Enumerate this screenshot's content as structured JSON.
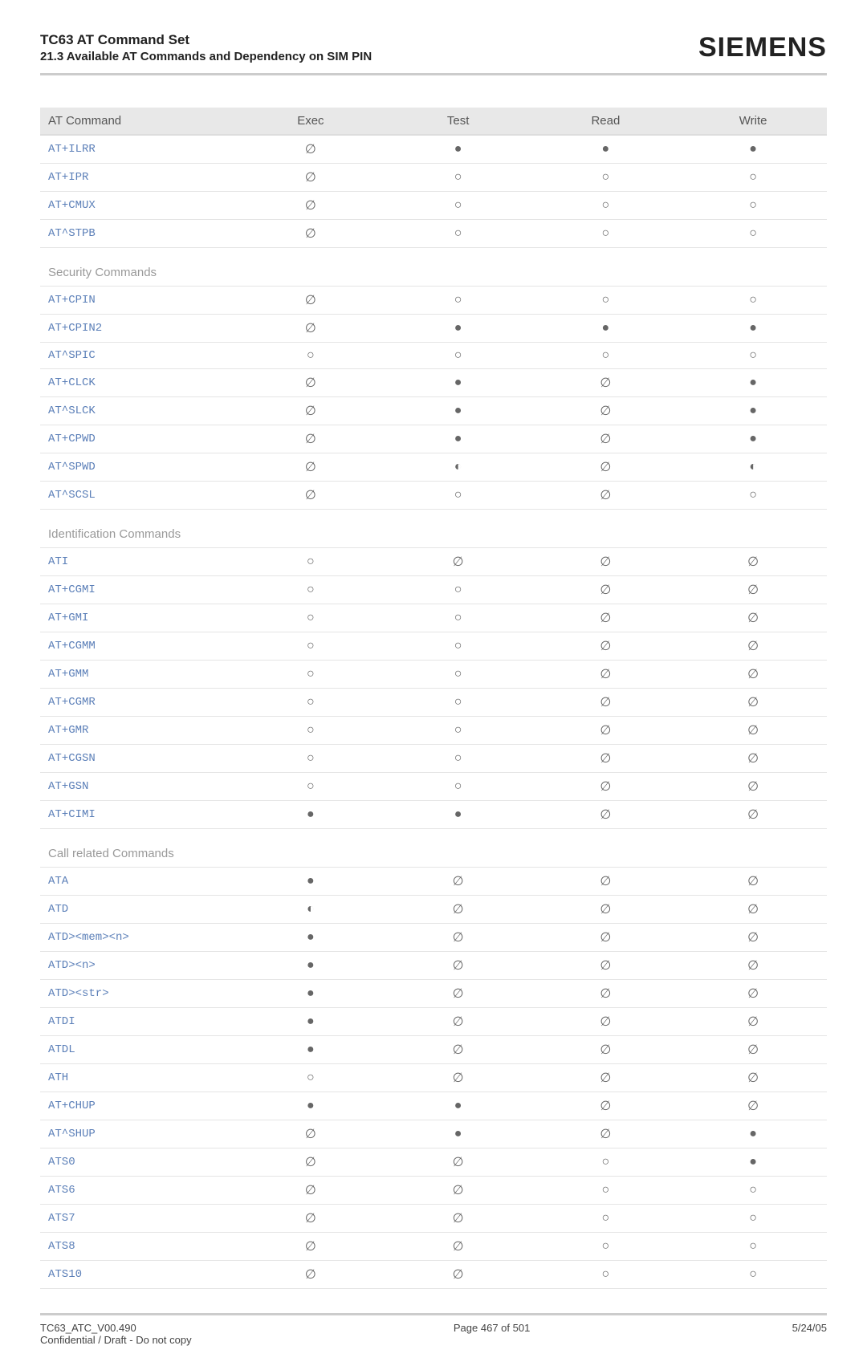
{
  "header": {
    "title": "TC63 AT Command Set",
    "subtitle": "21.3 Available AT Commands and Dependency on SIM PIN",
    "logo": "SIEMENS"
  },
  "columns": [
    "AT Command",
    "Exec",
    "Test",
    "Read",
    "Write"
  ],
  "symbols": {
    "none": "∅",
    "filled": "●",
    "hollow": "○",
    "half": "◐"
  },
  "sections": [
    {
      "title": null,
      "rows": [
        {
          "cmd": "AT+ILRR",
          "exec": "none",
          "test": "filled",
          "read": "filled",
          "write": "filled"
        },
        {
          "cmd": "AT+IPR",
          "exec": "none",
          "test": "hollow",
          "read": "hollow",
          "write": "hollow"
        },
        {
          "cmd": "AT+CMUX",
          "exec": "none",
          "test": "hollow",
          "read": "hollow",
          "write": "hollow"
        },
        {
          "cmd": "AT^STPB",
          "exec": "none",
          "test": "hollow",
          "read": "hollow",
          "write": "hollow"
        }
      ]
    },
    {
      "title": "Security Commands",
      "rows": [
        {
          "cmd": "AT+CPIN",
          "exec": "none",
          "test": "hollow",
          "read": "hollow",
          "write": "hollow"
        },
        {
          "cmd": "AT+CPIN2",
          "exec": "none",
          "test": "filled",
          "read": "filled",
          "write": "filled"
        },
        {
          "cmd": "AT^SPIC",
          "exec": "hollow",
          "test": "hollow",
          "read": "hollow",
          "write": "hollow"
        },
        {
          "cmd": "AT+CLCK",
          "exec": "none",
          "test": "filled",
          "read": "none",
          "write": "filled"
        },
        {
          "cmd": "AT^SLCK",
          "exec": "none",
          "test": "filled",
          "read": "none",
          "write": "filled"
        },
        {
          "cmd": "AT+CPWD",
          "exec": "none",
          "test": "filled",
          "read": "none",
          "write": "filled"
        },
        {
          "cmd": "AT^SPWD",
          "exec": "none",
          "test": "half",
          "read": "none",
          "write": "half"
        },
        {
          "cmd": "AT^SCSL",
          "exec": "none",
          "test": "hollow",
          "read": "none",
          "write": "hollow"
        }
      ]
    },
    {
      "title": "Identification Commands",
      "rows": [
        {
          "cmd": "ATI",
          "exec": "hollow",
          "test": "none",
          "read": "none",
          "write": "none"
        },
        {
          "cmd": "AT+CGMI",
          "exec": "hollow",
          "test": "hollow",
          "read": "none",
          "write": "none"
        },
        {
          "cmd": "AT+GMI",
          "exec": "hollow",
          "test": "hollow",
          "read": "none",
          "write": "none"
        },
        {
          "cmd": "AT+CGMM",
          "exec": "hollow",
          "test": "hollow",
          "read": "none",
          "write": "none"
        },
        {
          "cmd": "AT+GMM",
          "exec": "hollow",
          "test": "hollow",
          "read": "none",
          "write": "none"
        },
        {
          "cmd": "AT+CGMR",
          "exec": "hollow",
          "test": "hollow",
          "read": "none",
          "write": "none"
        },
        {
          "cmd": "AT+GMR",
          "exec": "hollow",
          "test": "hollow",
          "read": "none",
          "write": "none"
        },
        {
          "cmd": "AT+CGSN",
          "exec": "hollow",
          "test": "hollow",
          "read": "none",
          "write": "none"
        },
        {
          "cmd": "AT+GSN",
          "exec": "hollow",
          "test": "hollow",
          "read": "none",
          "write": "none"
        },
        {
          "cmd": "AT+CIMI",
          "exec": "filled",
          "test": "filled",
          "read": "none",
          "write": "none"
        }
      ]
    },
    {
      "title": "Call related Commands",
      "rows": [
        {
          "cmd": "ATA",
          "exec": "filled",
          "test": "none",
          "read": "none",
          "write": "none"
        },
        {
          "cmd": "ATD",
          "exec": "half",
          "test": "none",
          "read": "none",
          "write": "none"
        },
        {
          "cmd": "ATD><mem><n>",
          "exec": "filled",
          "test": "none",
          "read": "none",
          "write": "none"
        },
        {
          "cmd": "ATD><n>",
          "exec": "filled",
          "test": "none",
          "read": "none",
          "write": "none"
        },
        {
          "cmd": "ATD><str>",
          "exec": "filled",
          "test": "none",
          "read": "none",
          "write": "none"
        },
        {
          "cmd": "ATDI",
          "exec": "filled",
          "test": "none",
          "read": "none",
          "write": "none"
        },
        {
          "cmd": "ATDL",
          "exec": "filled",
          "test": "none",
          "read": "none",
          "write": "none"
        },
        {
          "cmd": "ATH",
          "exec": "hollow",
          "test": "none",
          "read": "none",
          "write": "none"
        },
        {
          "cmd": "AT+CHUP",
          "exec": "filled",
          "test": "filled",
          "read": "none",
          "write": "none"
        },
        {
          "cmd": "AT^SHUP",
          "exec": "none",
          "test": "filled",
          "read": "none",
          "write": "filled"
        },
        {
          "cmd": "ATS0",
          "exec": "none",
          "test": "none",
          "read": "hollow",
          "write": "filled"
        },
        {
          "cmd": "ATS6",
          "exec": "none",
          "test": "none",
          "read": "hollow",
          "write": "hollow"
        },
        {
          "cmd": "ATS7",
          "exec": "none",
          "test": "none",
          "read": "hollow",
          "write": "hollow"
        },
        {
          "cmd": "ATS8",
          "exec": "none",
          "test": "none",
          "read": "hollow",
          "write": "hollow"
        },
        {
          "cmd": "ATS10",
          "exec": "none",
          "test": "none",
          "read": "hollow",
          "write": "hollow"
        }
      ]
    }
  ],
  "footer": {
    "left1": "TC63_ATC_V00.490",
    "left2": "Confidential / Draft - Do not copy",
    "center": "Page 467 of 501",
    "right": "5/24/05"
  }
}
